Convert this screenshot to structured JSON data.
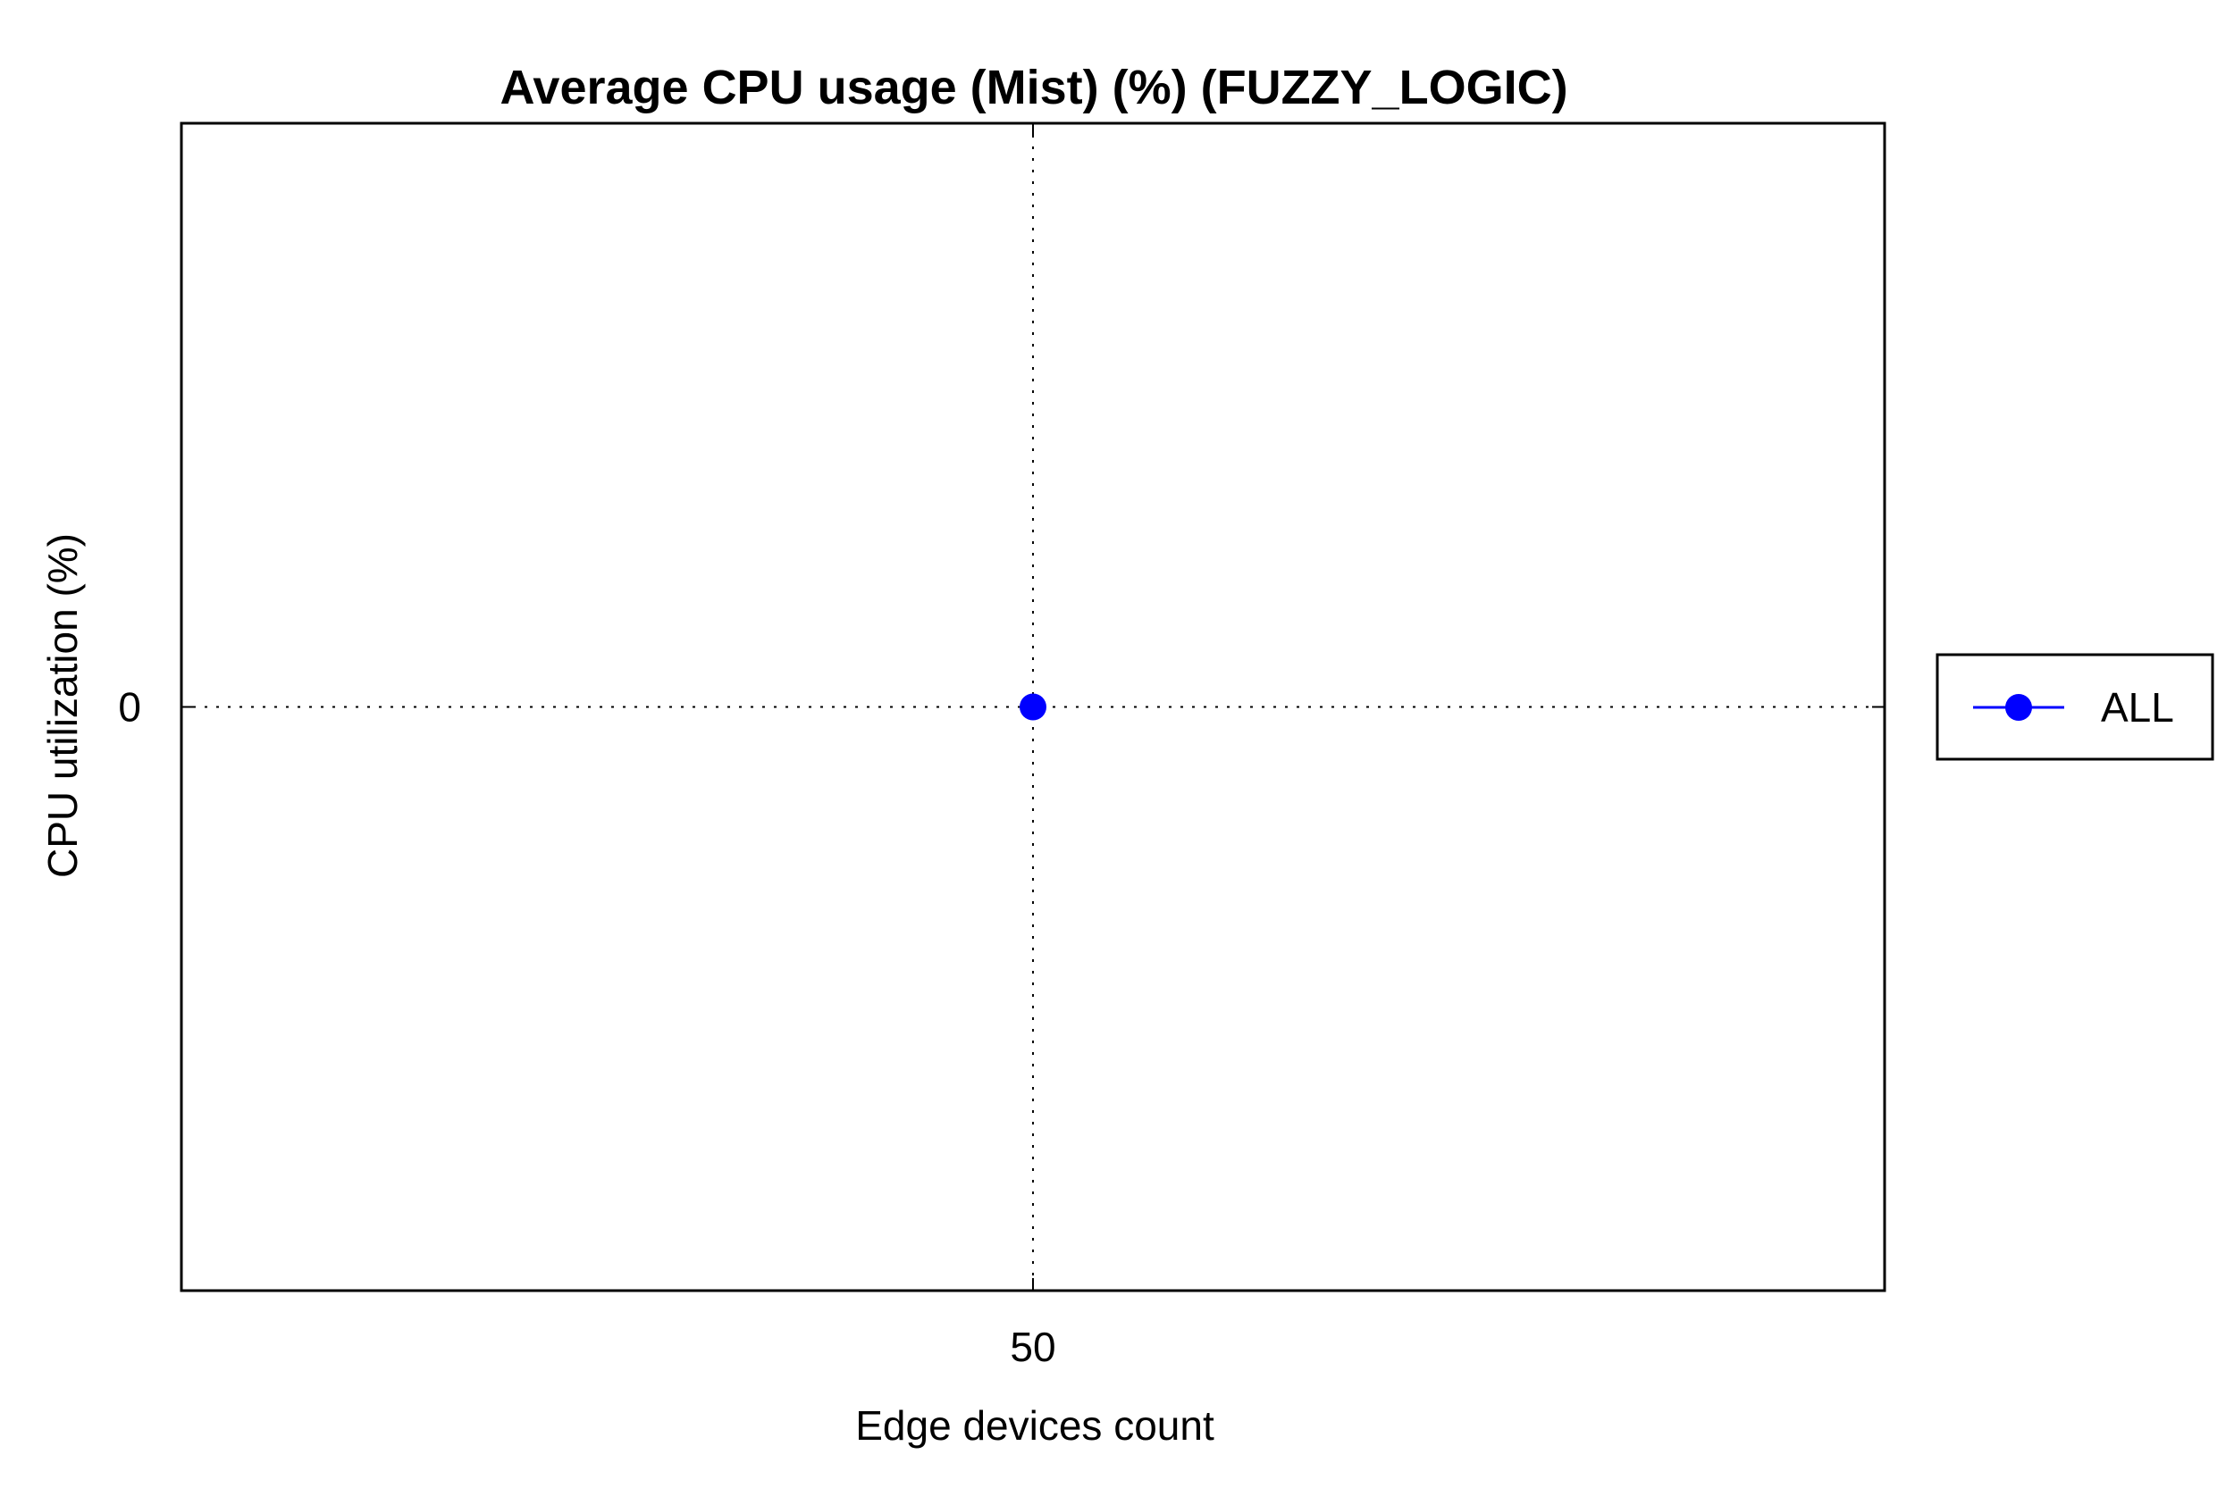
{
  "chart_data": {
    "type": "line",
    "title": "Average CPU usage (Mist) (%) (FUZZY_LOGIC)",
    "xlabel": "Edge devices count",
    "ylabel": "CPU utilization (%)",
    "x": [
      50
    ],
    "x_tick_labels": [
      "50"
    ],
    "y_tick_labels": [
      "0"
    ],
    "y_ticks": [
      0
    ],
    "xlim": [
      0,
      100
    ],
    "ylim": [
      -1,
      1
    ],
    "grid": true,
    "legend_position": "right",
    "series": [
      {
        "name": "ALL",
        "color": "#0000ff",
        "marker": "circle",
        "values": [
          0
        ]
      }
    ]
  }
}
